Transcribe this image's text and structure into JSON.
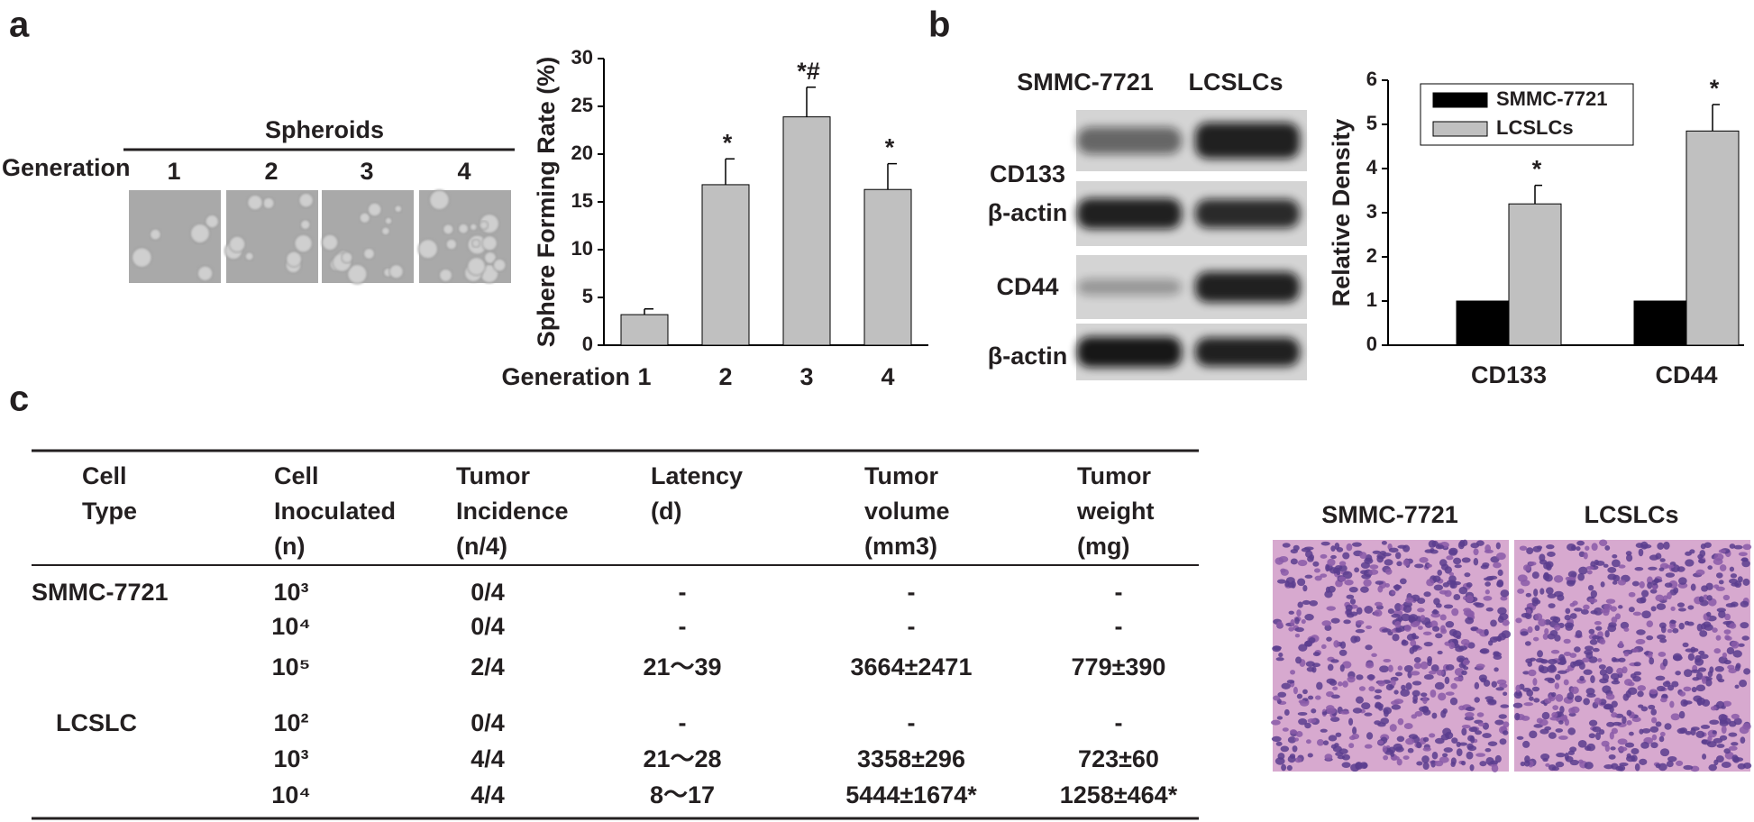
{
  "panel_labels": [
    "a",
    "b",
    "c"
  ],
  "spheroids": {
    "title": "Spheroids",
    "row_label": "Generation",
    "generations": [
      "1",
      "2",
      "3",
      "4"
    ]
  },
  "chart_data": [
    {
      "type": "bar",
      "y_label": "Sphere Forming Rate (%)",
      "x_label": "Generation",
      "categories": [
        "1",
        "2",
        "3",
        "4"
      ],
      "values": [
        3.2,
        16.8,
        23.9,
        16.3
      ],
      "errors": [
        0.6,
        2.7,
        3.1,
        2.7
      ],
      "annotations": [
        null,
        "*",
        "*#",
        "*"
      ],
      "color": "#c0c0c0",
      "ylim": [
        0,
        30
      ],
      "yticks": [
        0,
        5,
        10,
        15,
        20,
        25,
        30
      ]
    },
    {
      "type": "bar",
      "y_label": "Relative Density",
      "categories": [
        "CD133",
        "CD44"
      ],
      "series": [
        {
          "name": "SMMC-7721",
          "color": "#000000",
          "values": [
            1,
            1
          ]
        },
        {
          "name": "LCSLCs",
          "color": "#c0c0c0",
          "values": [
            3.2,
            4.85
          ],
          "errors": [
            0.42,
            0.6
          ],
          "annotations": [
            "*",
            "*"
          ]
        }
      ],
      "ylim": [
        0,
        6
      ],
      "yticks": [
        0,
        1,
        2,
        3,
        4,
        5,
        6
      ],
      "legend": "top-left"
    }
  ],
  "western_blot": {
    "column_labels": [
      "SMMC-7721",
      "LCSLCs"
    ],
    "row_labels": [
      "CD133",
      "β-actin",
      "CD44",
      "β-actin"
    ]
  },
  "table": {
    "headers": [
      [
        "Cell",
        "Type"
      ],
      [
        "Cell",
        "Inoculated",
        "(n)"
      ],
      [
        "Tumor",
        "Incidence",
        "(n/4)"
      ],
      [
        "Latency",
        "(d)"
      ],
      [
        "Tumor",
        "volume",
        "(mm3)"
      ],
      [
        "Tumor",
        "weight",
        "(mg)"
      ]
    ],
    "groups": [
      {
        "cell_type": "SMMC-7721",
        "rows": [
          [
            "10³",
            "0/4",
            "-",
            "-",
            "-"
          ],
          [
            "10⁴",
            "0/4",
            "-",
            "-",
            "-"
          ],
          [
            "10⁵",
            "2/4",
            "21～39",
            "3664±2471",
            "779±390"
          ]
        ]
      },
      {
        "cell_type": "LCSLC",
        "rows": [
          [
            "10²",
            "0/4",
            "-",
            "-",
            "-"
          ],
          [
            "10³",
            "4/4",
            "21～28",
            "3358±296",
            "723±60"
          ],
          [
            "10⁴",
            "4/4",
            "8～17",
            "5444±1674*",
            "1258±464*"
          ]
        ]
      }
    ]
  },
  "histology": {
    "labels": [
      "SMMC-7721",
      "LCSLCs"
    ]
  }
}
